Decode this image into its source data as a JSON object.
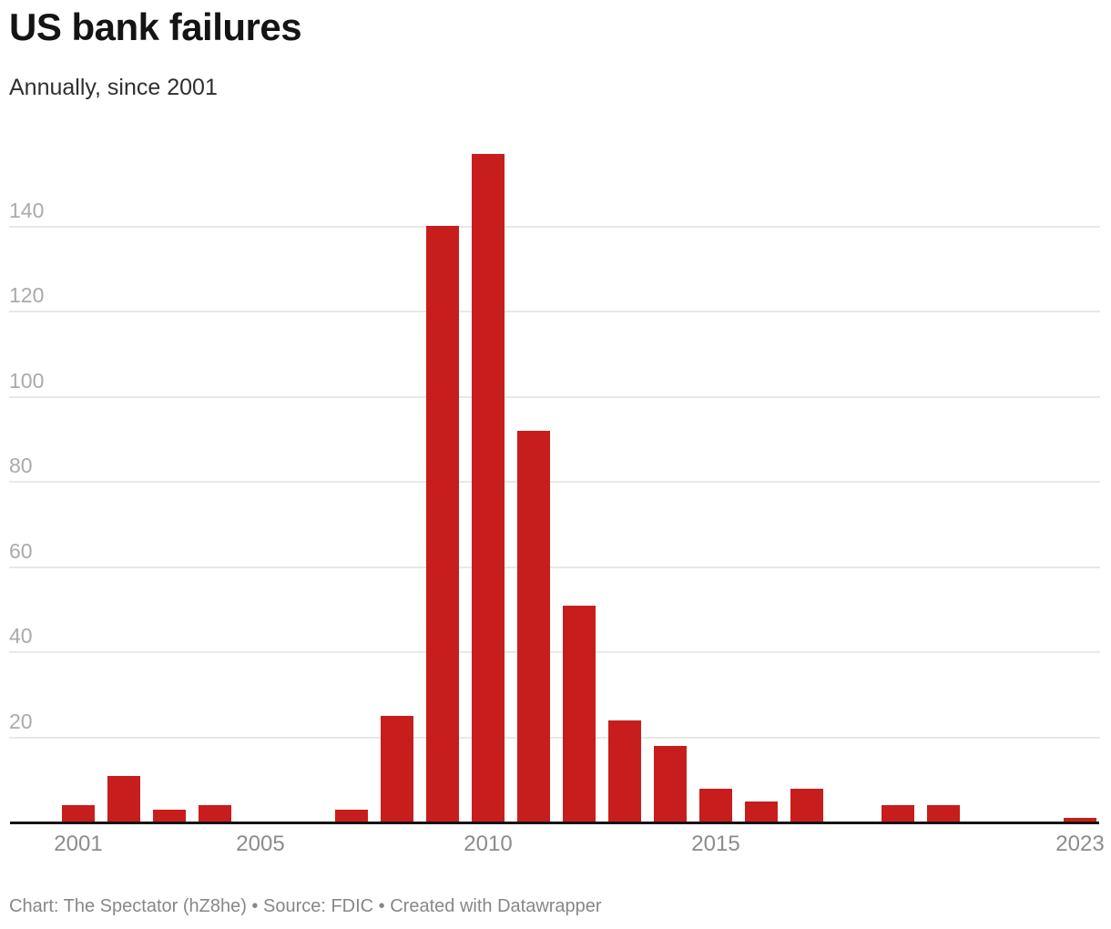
{
  "header": {
    "title": "US bank failures",
    "subtitle": "Annually, since 2001"
  },
  "footer": {
    "text": "Chart: The Spectator (hZ8he) • Source: FDIC • Created with Datawrapper"
  },
  "colors": {
    "bg": "#ffffff",
    "bar": "#c71e1d",
    "grid": "#e8e8e8",
    "baseline": "#141414",
    "title": "#141414",
    "subtitle": "#2f2f2f",
    "ylabel": "#aaaaaa",
    "xlabel": "#8c8c8c",
    "footer": "#878787"
  },
  "chart_data": {
    "type": "bar",
    "title": "US bank failures",
    "subtitle": "Annually, since 2001",
    "categories": [
      2001,
      2002,
      2003,
      2004,
      2005,
      2006,
      2007,
      2008,
      2009,
      2010,
      2011,
      2012,
      2013,
      2014,
      2015,
      2016,
      2017,
      2018,
      2019,
      2020,
      2021,
      2022,
      2023
    ],
    "values": [
      4,
      11,
      3,
      4,
      0,
      0,
      3,
      25,
      140,
      157,
      92,
      51,
      24,
      18,
      8,
      5,
      8,
      0,
      4,
      4,
      0,
      0,
      1
    ],
    "xlabel": "",
    "ylabel": "",
    "ylim": [
      0,
      160
    ],
    "y_ticks": [
      20,
      40,
      60,
      80,
      100,
      120,
      140
    ],
    "x_ticks": [
      2001,
      2005,
      2010,
      2015,
      2023
    ],
    "grid": true,
    "legend": "none",
    "bar_color": "#c71e1d",
    "source": "FDIC",
    "credit": "Chart: The Spectator (hZ8he)",
    "tool": "Created with Datawrapper"
  }
}
